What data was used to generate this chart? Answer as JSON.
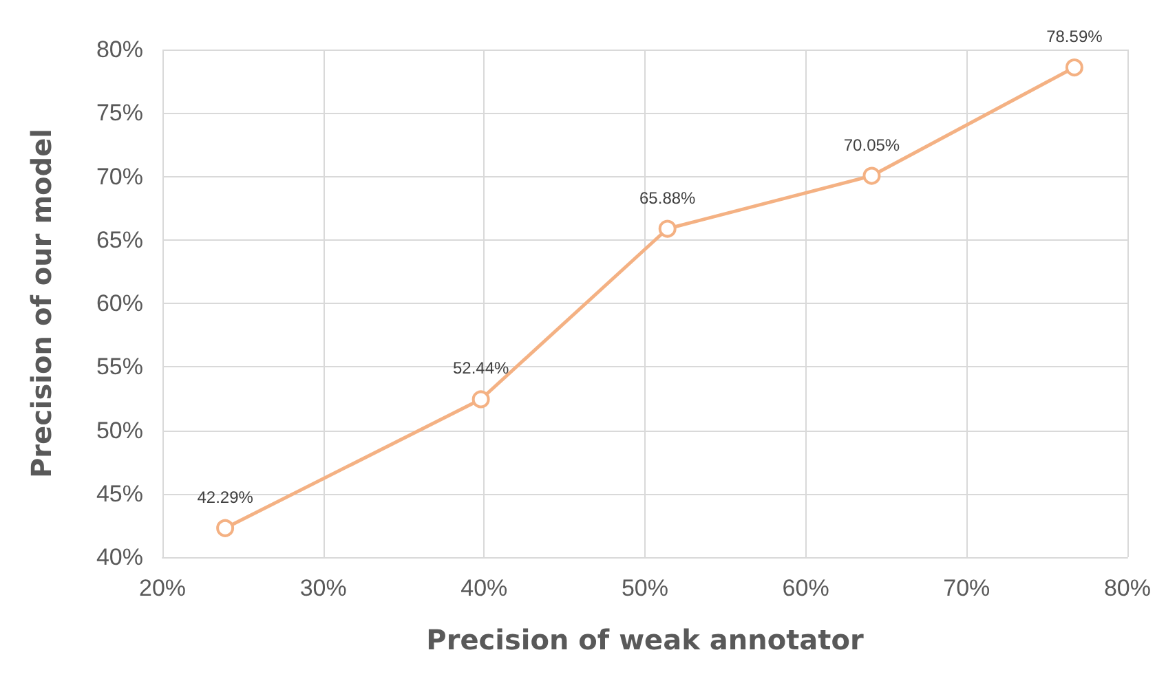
{
  "chart_data": {
    "type": "line",
    "xlabel": "Precision of weak annotator",
    "ylabel": "Precision of our model",
    "x": [
      23.9,
      39.8,
      51.4,
      64.1,
      76.7
    ],
    "series": [
      {
        "color": "#f4b183",
        "values": [
          42.29,
          52.44,
          65.88,
          70.05,
          78.59
        ]
      }
    ],
    "xlim": [
      20,
      80
    ],
    "xticks": [
      {
        "value": 20,
        "label": "20%"
      },
      {
        "value": 30,
        "label": "30%"
      },
      {
        "value": 40,
        "label": "40%"
      },
      {
        "value": 50,
        "label": "50%"
      },
      {
        "value": 60,
        "label": "60%"
      },
      {
        "value": 70,
        "label": "70%"
      },
      {
        "value": 80,
        "label": "80%"
      }
    ],
    "ylim": [
      40,
      80
    ],
    "yticks": [
      {
        "value": 40,
        "label": "40%"
      },
      {
        "value": 45,
        "label": "45%"
      },
      {
        "value": 50,
        "label": "50%"
      },
      {
        "value": 55,
        "label": "55%"
      },
      {
        "value": 60,
        "label": "60%"
      },
      {
        "value": 65,
        "label": "65%"
      },
      {
        "value": 70,
        "label": "70%"
      },
      {
        "value": 75,
        "label": "75%"
      },
      {
        "value": 80,
        "label": "80%"
      }
    ],
    "value_labels": [
      "42.29%",
      "52.44%",
      "65.88%",
      "70.05%",
      "78.59%"
    ],
    "grid": true,
    "marker": "circle",
    "line_style": "solid"
  }
}
